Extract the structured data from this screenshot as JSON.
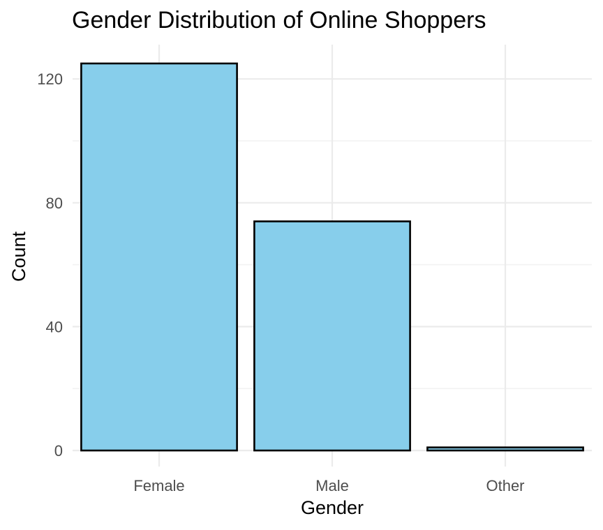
{
  "chart_data": {
    "type": "bar",
    "title": "Gender Distribution of Online Shoppers",
    "xlabel": "Gender",
    "ylabel": "Count",
    "categories": [
      "Female",
      "Male",
      "Other"
    ],
    "values": [
      125,
      74,
      1
    ],
    "ylim": [
      0,
      129
    ],
    "yticks": [
      0,
      40,
      80,
      120
    ],
    "ytick_labels": [
      "0",
      "40",
      "80",
      "120"
    ],
    "grid": true,
    "legend": "none",
    "colors": {
      "bar_fill": "#87CEEB",
      "bar_outline": "#000000",
      "grid": "#ebebeb",
      "background": "#ffffff"
    }
  }
}
